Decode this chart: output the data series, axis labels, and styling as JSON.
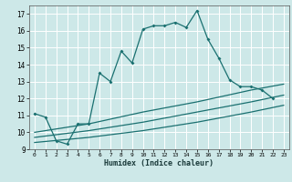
{
  "xlabel": "Humidex (Indice chaleur)",
  "bg_color": "#cde8e8",
  "grid_color": "#ffffff",
  "line_color": "#1a7070",
  "xlim": [
    -0.5,
    23.5
  ],
  "ylim": [
    9,
    17.5
  ],
  "xticks": [
    0,
    1,
    2,
    3,
    4,
    5,
    6,
    7,
    8,
    9,
    10,
    11,
    12,
    13,
    14,
    15,
    16,
    17,
    18,
    19,
    20,
    21,
    22,
    23
  ],
  "yticks": [
    9,
    10,
    11,
    12,
    13,
    14,
    15,
    16,
    17
  ],
  "main_x": [
    0,
    1,
    2,
    3,
    4,
    5,
    6,
    7,
    8,
    9,
    10,
    11,
    12,
    13,
    14,
    15,
    16,
    17,
    18,
    19,
    20,
    21,
    22
  ],
  "main_y": [
    11.1,
    10.9,
    9.5,
    9.3,
    10.5,
    10.5,
    13.5,
    13.0,
    14.8,
    14.1,
    16.1,
    16.3,
    16.3,
    16.5,
    16.2,
    17.2,
    15.5,
    14.4,
    13.1,
    12.7,
    12.7,
    12.5,
    12.0
  ],
  "line2_x": [
    0,
    5,
    10,
    15,
    20,
    23
  ],
  "line2_y": [
    10.0,
    10.5,
    11.2,
    11.8,
    12.5,
    12.85
  ],
  "line3_x": [
    0,
    5,
    10,
    15,
    20,
    23
  ],
  "line3_y": [
    9.7,
    10.1,
    10.6,
    11.2,
    11.8,
    12.2
  ],
  "line4_x": [
    0,
    5,
    10,
    15,
    20,
    23
  ],
  "line4_y": [
    9.4,
    9.7,
    10.1,
    10.6,
    11.2,
    11.6
  ]
}
